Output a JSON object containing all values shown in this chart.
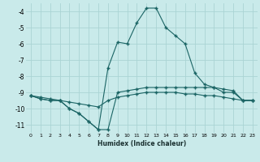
{
  "xlabel": "Humidex (Indice chaleur)",
  "bg_color": "#c9eaea",
  "grid_color": "#aad4d4",
  "line_color": "#1a6464",
  "xlim": [
    -0.5,
    23.5
  ],
  "ylim": [
    -11.5,
    -3.5
  ],
  "yticks": [
    -11,
    -10,
    -9,
    -8,
    -7,
    -6,
    -5,
    -4
  ],
  "xticks": [
    0,
    1,
    2,
    3,
    4,
    5,
    6,
    7,
    8,
    9,
    10,
    11,
    12,
    13,
    14,
    15,
    16,
    17,
    18,
    19,
    20,
    21,
    22,
    23
  ],
  "series1_x": [
    0,
    1,
    2,
    3,
    4,
    5,
    6,
    7,
    8,
    9,
    10,
    11,
    12,
    13,
    14,
    15,
    16,
    17,
    18,
    19,
    20,
    21,
    22,
    23
  ],
  "series1_y": [
    -9.2,
    -9.3,
    -9.4,
    -9.5,
    -9.6,
    -9.7,
    -9.8,
    -9.9,
    -9.5,
    -9.3,
    -9.2,
    -9.1,
    -9.0,
    -9.0,
    -9.0,
    -9.0,
    -9.1,
    -9.1,
    -9.2,
    -9.2,
    -9.3,
    -9.4,
    -9.5,
    -9.5
  ],
  "series2_x": [
    0,
    1,
    2,
    3,
    4,
    5,
    6,
    7,
    8,
    9,
    10,
    11,
    12,
    13,
    14,
    15,
    16,
    17,
    18,
    19,
    20,
    21,
    22,
    23
  ],
  "series2_y": [
    -9.2,
    -9.4,
    -9.5,
    -9.5,
    -10.0,
    -10.3,
    -10.8,
    -11.3,
    -11.3,
    -9.0,
    -8.9,
    -8.8,
    -8.7,
    -8.7,
    -8.7,
    -8.7,
    -8.7,
    -8.7,
    -8.7,
    -8.7,
    -8.8,
    -8.9,
    -9.5,
    -9.5
  ],
  "series3_x": [
    0,
    1,
    2,
    3,
    4,
    5,
    6,
    7,
    8,
    9,
    10,
    11,
    12,
    13,
    14,
    15,
    16,
    17,
    18,
    19,
    20,
    21,
    22,
    23
  ],
  "series3_y": [
    -9.2,
    -9.4,
    -9.5,
    -9.5,
    -10.0,
    -10.3,
    -10.8,
    -11.3,
    -7.5,
    -5.9,
    -6.0,
    -4.7,
    -3.8,
    -3.8,
    -5.0,
    -5.5,
    -6.0,
    -7.8,
    -8.5,
    -8.7,
    -9.0,
    -9.0,
    -9.5,
    -9.5
  ]
}
